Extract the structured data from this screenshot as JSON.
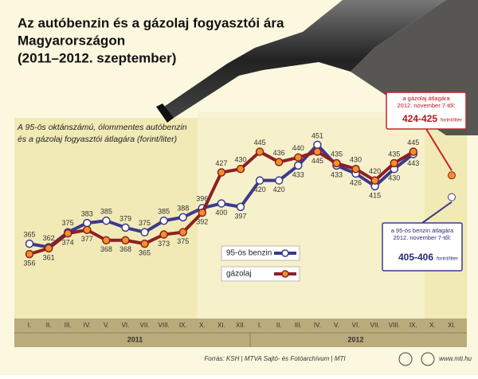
{
  "chart_data": {
    "type": "line",
    "title": [
      "Az autóbenzin és a gázolaj fogyasztói ára",
      "Magyarországon",
      "(2011–2012. szeptember)"
    ],
    "subtitle": [
      "A 95-ös oktánszámú, ólommentes autóbenzin",
      "és a gázolaj fogyasztói átlagára (forint/liter)"
    ],
    "categories": [
      "I.",
      "II.",
      "III.",
      "IV.",
      "V.",
      "VI.",
      "VII.",
      "VIII.",
      "IX.",
      "X.",
      "XI.",
      "XII.",
      "I.",
      "II.",
      "III.",
      "IV.",
      "V.",
      "VI.",
      "VII.",
      "VIII.",
      "IX.",
      "X.",
      "XI."
    ],
    "years": [
      "2011",
      "2012"
    ],
    "ylim": [
      300,
      480
    ],
    "series": [
      {
        "name": "95-ös benzin",
        "color": "#3b3a8e",
        "marker": "#ffffff",
        "values": [
          365,
          362,
          375,
          383,
          385,
          379,
          375,
          385,
          388,
          396,
          400,
          397,
          420,
          420,
          433,
          451,
          433,
          426,
          415,
          430,
          443,
          null,
          405.5
        ]
      },
      {
        "name": "gázolaj",
        "color": "#8e1f22",
        "marker": "#f0922b",
        "values": [
          356,
          361,
          374,
          377,
          368,
          368,
          365,
          373,
          375,
          392,
          427,
          430,
          445,
          436,
          440,
          445,
          435,
          430,
          420,
          435,
          445,
          null,
          424.5
        ]
      }
    ],
    "annotations": [
      {
        "lines": [
          "a gázolaj átlagára",
          "2012. november 7-től:"
        ],
        "value_text": "424-425",
        "unit": "forint/liter"
      },
      {
        "lines": [
          "a 95-ös benzin átlagára",
          "2012. november 7-től:"
        ],
        "value_text": "405-406",
        "unit": "forint/liter"
      }
    ],
    "source": "Forrás: KSH | MTVA Sajtó- és Fotóarchívum | MTI",
    "website": "www.mti.hu"
  }
}
